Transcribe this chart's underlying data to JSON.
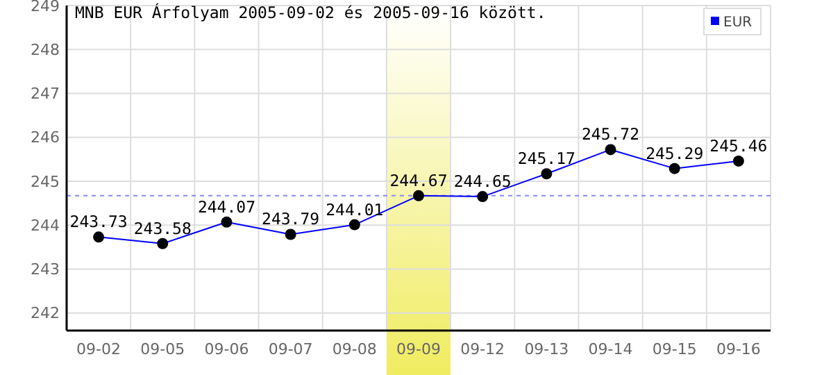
{
  "chart_data": {
    "type": "line",
    "title": "MNB EUR Árfolyam 2005-09-02 és 2005-09-16 között.",
    "categories": [
      "09-02",
      "09-05",
      "09-06",
      "09-07",
      "09-08",
      "09-09",
      "09-12",
      "09-13",
      "09-14",
      "09-15",
      "09-16"
    ],
    "series": [
      {
        "name": "EUR",
        "color": "#0000ff",
        "values": [
          243.73,
          243.58,
          244.07,
          243.79,
          244.01,
          244.67,
          244.65,
          245.17,
          245.72,
          245.29,
          245.46
        ]
      }
    ],
    "ylim": [
      241.6,
      249
    ],
    "yticks": [
      242,
      243,
      244,
      245,
      246,
      247,
      248,
      249
    ],
    "ref_lines": [
      {
        "axis": "y",
        "value": 244.67,
        "color": "#8888ff",
        "line_style": "dashed"
      }
    ],
    "bands": [
      {
        "axis": "x",
        "from": "09-09",
        "to": "09-09",
        "color": "#f0ec60"
      }
    ],
    "grid": true,
    "legend": "top right",
    "marker": "circle",
    "data_labels": true
  }
}
